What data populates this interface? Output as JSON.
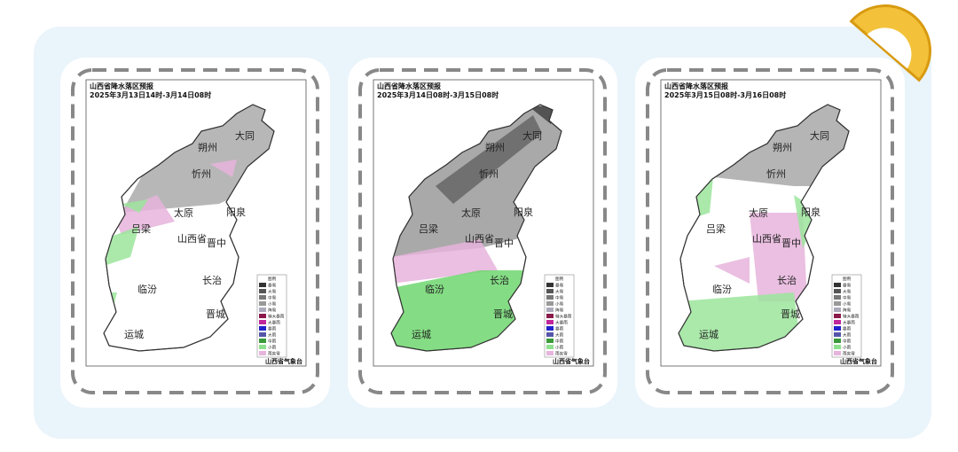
{
  "panels": [
    {
      "title": "山西省降水落区预报",
      "period": "2025年3月13日14时-3月14日08时",
      "cities": [
        "大同",
        "朔州",
        "忻州",
        "太原",
        "阳泉",
        "吕梁",
        "山西省",
        "晋中",
        "临汾",
        "长治",
        "晋城",
        "运城"
      ],
      "legend": {
        "title": "图例",
        "items": [
          "暴雪",
          "大雪",
          "中雪",
          "小雪",
          "阵雪",
          "特大暴雨",
          "大暴雨",
          "暴雨",
          "大雨",
          "中雨",
          "小雨",
          "雨夹雪"
        ]
      },
      "source": "山西省气象台"
    },
    {
      "title": "山西省降水落区预报",
      "period": "2025年3月14日08时-3月15日08时",
      "cities": [
        "大同",
        "朔州",
        "忻州",
        "太原",
        "阳泉",
        "吕梁",
        "山西省",
        "晋中",
        "临汾",
        "长治",
        "晋城",
        "运城"
      ],
      "legend": {
        "title": "图例",
        "items": [
          "暴雪",
          "大雪",
          "中雪",
          "小雪",
          "阵雪",
          "特大暴雨",
          "大暴雨",
          "暴雨",
          "大雨",
          "中雨",
          "小雨",
          "雨夹雪"
        ]
      },
      "source": "山西省气象台"
    },
    {
      "title": "山西省降水落区预报",
      "period": "2025年3月15日08时-3月16日08时",
      "cities": [
        "大同",
        "朔州",
        "忻州",
        "太原",
        "阳泉",
        "吕梁",
        "山西省",
        "晋中",
        "临汾",
        "长治",
        "晋城",
        "运城"
      ],
      "legend": {
        "title": "图例",
        "items": [
          "暴雪",
          "大雪",
          "中雪",
          "小雪",
          "阵雪",
          "特大暴雨",
          "大暴雨",
          "暴雨",
          "大雨",
          "中雨",
          "小雨",
          "雨夹雪"
        ]
      },
      "source": "山西省气象台"
    }
  ]
}
